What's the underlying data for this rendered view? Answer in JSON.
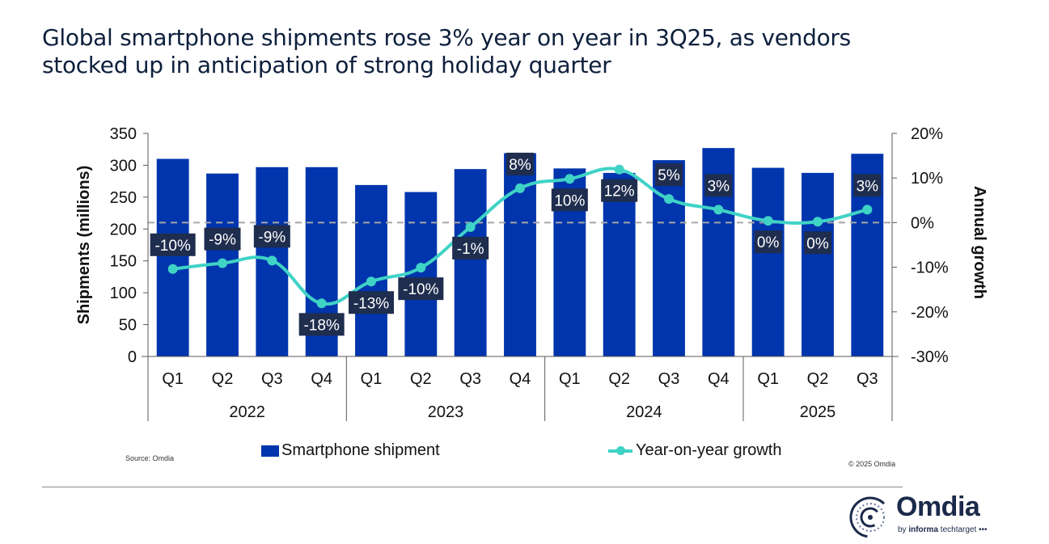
{
  "title_lines": [
    "Global smartphone shipments rose 3% year on year in 3Q25, as vendors",
    "stocked up in anticipation of strong holiday quarter"
  ],
  "source": "Source: Omdia",
  "copyright": "© 2025 Omdia",
  "logo": {
    "name": "Omdia",
    "sub_prefix": "by ",
    "sub_bold": "informa",
    "sub_rest": " techtarget •••"
  },
  "colors": {
    "bar": "#0035ad",
    "line": "#3fd3c6",
    "label_bg": "#1f2d4e",
    "zero_line": "#a6a6a6",
    "axis": "#595959"
  },
  "chart_data": {
    "type": "bar",
    "title": "Global smartphone shipments rose 3% year on year in 3Q25, as vendors stocked up in anticipation of strong holiday quarter",
    "categories": [
      "Q1",
      "Q2",
      "Q3",
      "Q4",
      "Q1",
      "Q2",
      "Q3",
      "Q4",
      "Q1",
      "Q2",
      "Q3",
      "Q4",
      "Q1",
      "Q2",
      "Q3"
    ],
    "year_groups": [
      {
        "label": "2022",
        "count": 4
      },
      {
        "label": "2023",
        "count": 4
      },
      {
        "label": "2024",
        "count": 4
      },
      {
        "label": "2025",
        "count": 3
      }
    ],
    "series": [
      {
        "name": "Smartphone shipment",
        "type": "bar",
        "axis": "left",
        "values": [
          310,
          287,
          297,
          297,
          269,
          258,
          294,
          319,
          295,
          288,
          308,
          327,
          296,
          288,
          318
        ]
      },
      {
        "name": "Year-on-year growth",
        "type": "line",
        "axis": "right",
        "values": [
          -10.4,
          -9.1,
          -8.5,
          -18.1,
          -13.2,
          -10.1,
          -1.0,
          7.7,
          9.8,
          11.9,
          5.3,
          2.9,
          0.4,
          0.2,
          2.9
        ],
        "labels": [
          "-10%",
          "-9%",
          "-9%",
          "-18%",
          "-13%",
          "-10%",
          "-1%",
          "8%",
          "10%",
          "12%",
          "5%",
          "3%",
          "0%",
          "0%",
          "3%"
        ],
        "label_pos": [
          "above",
          "above",
          "above",
          "below",
          "below",
          "below",
          "below",
          "above",
          "below",
          "below",
          "above",
          "above",
          "below",
          "below",
          "above"
        ]
      }
    ],
    "ylabel": "Shipments (millions)",
    "y2label": "Annual growth",
    "ylim": [
      0,
      350
    ],
    "yticks": [
      "0",
      "50",
      "100",
      "150",
      "200",
      "250",
      "300",
      "350"
    ],
    "y2lim": [
      -30,
      20
    ],
    "y2ticks": [
      "-30%",
      "-20%",
      "-10%",
      "0%",
      "10%",
      "20%"
    ],
    "y2_reference_line": 0,
    "grid": false,
    "legend": {
      "position": "bottom",
      "entries": [
        "Smartphone shipment",
        "Year-on-year growth"
      ]
    }
  }
}
